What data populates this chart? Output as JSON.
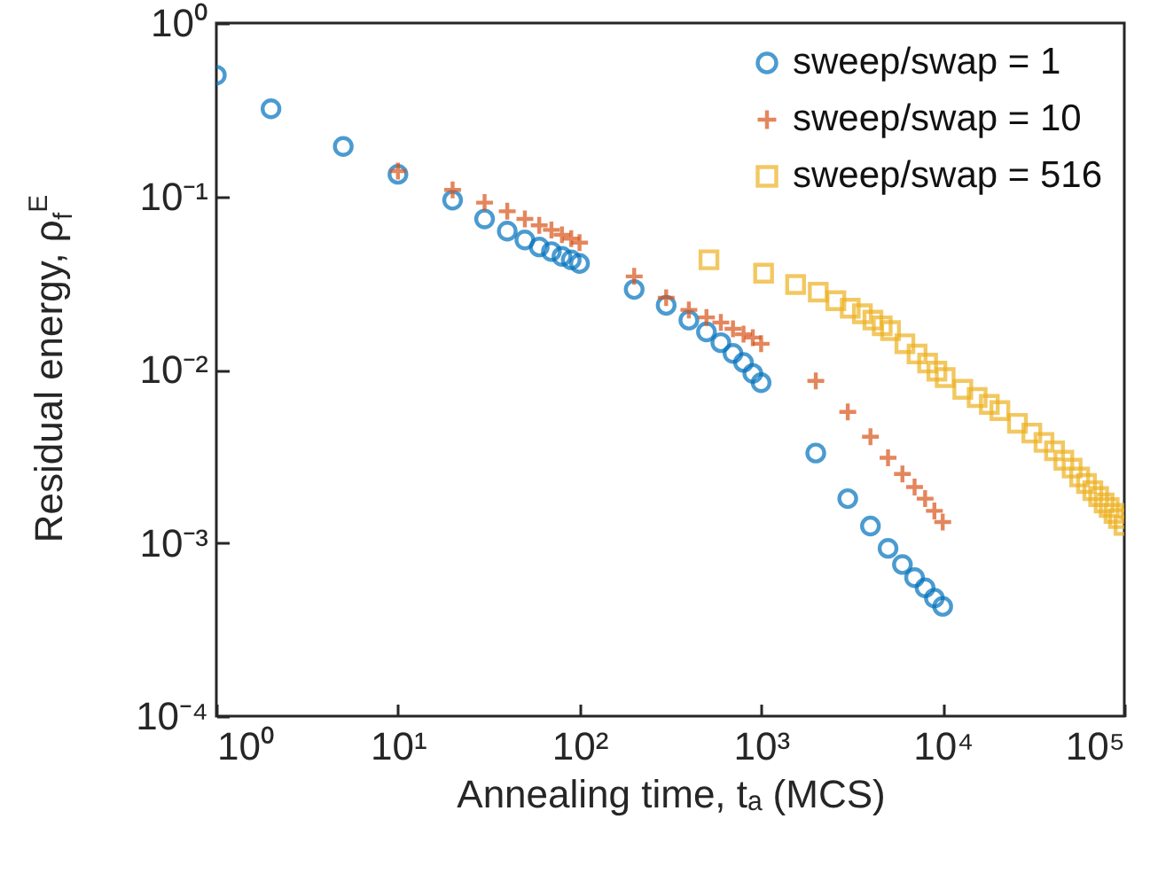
{
  "chart_data": {
    "type": "scatter",
    "xlabel": "Annealing time, tₐ (MCS)",
    "ylabel": "Residual energy, ρ$_{f}$$^{E}$",
    "log": "xy",
    "legend": "top right",
    "xlim": [
      1,
      100000
    ],
    "xticks": [
      {
        "value": 1,
        "label": "10⁰"
      },
      {
        "value": 10,
        "label": "10¹"
      },
      {
        "value": 100,
        "label": "10²"
      },
      {
        "value": 1000,
        "label": "10³"
      },
      {
        "value": 10000,
        "label": "10⁴"
      },
      {
        "value": 100000,
        "label": "10⁵"
      }
    ],
    "ylim": [
      0.0001,
      1
    ],
    "yticks": [
      {
        "value": 0.0001,
        "label": "10⁻⁴"
      },
      {
        "value": 0.001,
        "label": "10⁻³"
      },
      {
        "value": 0.01,
        "label": "10⁻²"
      },
      {
        "value": 0.1,
        "label": "10⁻¹"
      },
      {
        "value": 1,
        "label": "10⁰"
      }
    ],
    "series": [
      {
        "name": "sweep/swap = 1",
        "color": "#0072bd",
        "marker": "circle",
        "x": [
          1,
          2,
          5,
          10,
          20,
          30,
          40,
          50,
          60,
          70,
          80,
          90,
          100,
          200,
          300,
          400,
          500,
          600,
          700,
          800,
          900,
          1000,
          2000,
          3000,
          4000,
          5000,
          6000,
          7000,
          8000,
          9000,
          10000
        ],
        "values": [
          0.5,
          0.32,
          0.194,
          0.134,
          0.095,
          0.074,
          0.063,
          0.056,
          0.051,
          0.048,
          0.045,
          0.043,
          0.041,
          0.029,
          0.0235,
          0.0193,
          0.0165,
          0.0143,
          0.0124,
          0.011,
          0.0095,
          0.0084,
          0.0033,
          0.0018,
          0.00125,
          0.00093,
          0.00075,
          0.00063,
          0.00055,
          0.00048,
          0.00043
        ]
      },
      {
        "name": "sweep/swap = 10",
        "color": "#d95319",
        "marker": "cross",
        "x": [
          10,
          20,
          30,
          40,
          50,
          60,
          70,
          80,
          90,
          100,
          200,
          300,
          400,
          500,
          600,
          700,
          800,
          900,
          1000,
          2000,
          3000,
          4000,
          5000,
          6000,
          7000,
          8000,
          9000,
          10000
        ],
        "values": [
          0.14,
          0.109,
          0.092,
          0.082,
          0.074,
          0.068,
          0.064,
          0.06,
          0.057,
          0.054,
          0.0345,
          0.026,
          0.0221,
          0.02,
          0.0187,
          0.0172,
          0.016,
          0.0153,
          0.0141,
          0.0086,
          0.0057,
          0.0041,
          0.0031,
          0.0025,
          0.0021,
          0.0018,
          0.00153,
          0.00132
        ]
      },
      {
        "name": "sweep/swap = 516",
        "color": "#edb120",
        "marker": "square",
        "x": [
          516,
          1032,
          1548,
          2064,
          2580,
          3096,
          3612,
          4128,
          4644,
          5160,
          6192,
          7224,
          8256,
          9288,
          10320,
          12900,
          15480,
          18060,
          20640,
          25800,
          30960,
          36120,
          41280,
          46440,
          51600,
          56760,
          61920,
          67080,
          72240,
          77400,
          82560,
          87720,
          92880,
          99588
        ],
        "values": [
          0.043,
          0.036,
          0.031,
          0.028,
          0.025,
          0.0226,
          0.021,
          0.0193,
          0.0179,
          0.0168,
          0.0141,
          0.0123,
          0.0109,
          0.0098,
          0.009,
          0.0077,
          0.0069,
          0.0063,
          0.0058,
          0.0049,
          0.0043,
          0.0038,
          0.0034,
          0.003,
          0.0027,
          0.0024,
          0.0022,
          0.002,
          0.00185,
          0.0017,
          0.0016,
          0.00148,
          0.00138,
          0.00126
        ]
      }
    ]
  }
}
